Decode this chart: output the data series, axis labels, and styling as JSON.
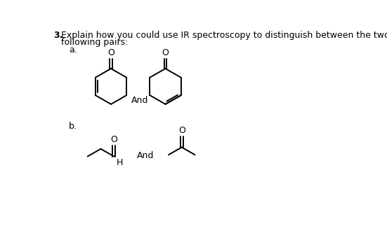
{
  "title_num": "3.",
  "title_text": "Explain how you could use IR spectroscopy to distinguish between the two compounds in the\nfollowing pairs:",
  "label_a": "a.",
  "label_b": "b.",
  "and_label_a": "And",
  "and_label_b": "And",
  "bg_color": "#ffffff",
  "text_color": "#000000",
  "line_color": "#000000",
  "font_size_title": 9.0,
  "font_size_label": 9.0,
  "font_size_chem": 9.0
}
